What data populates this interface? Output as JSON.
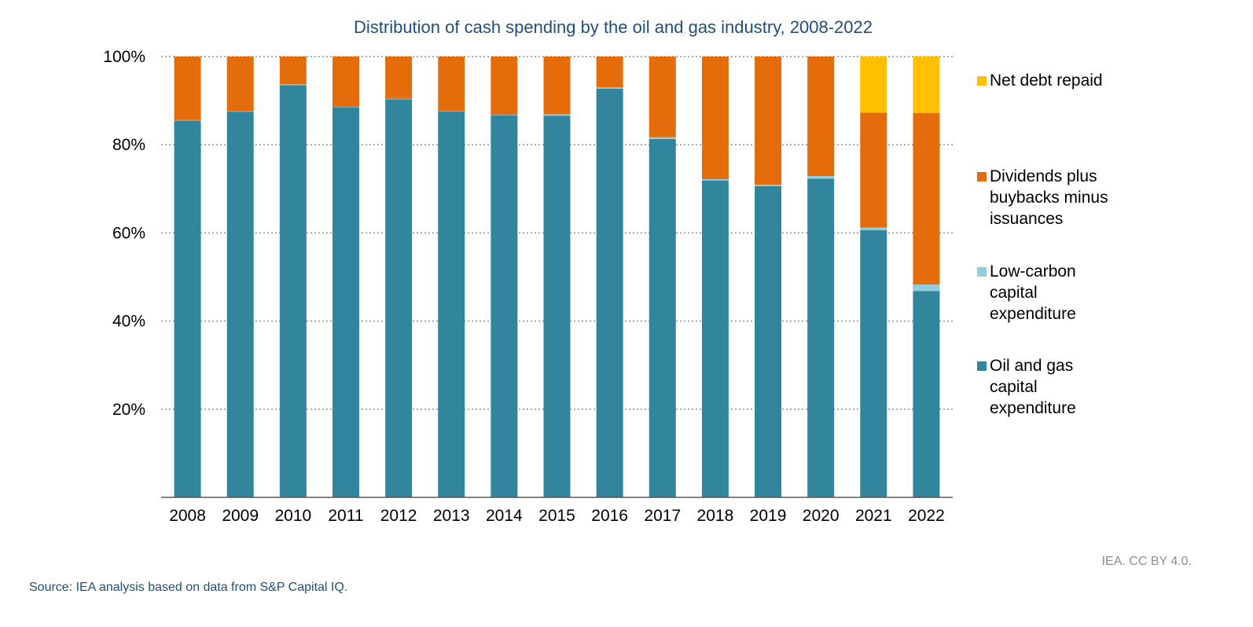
{
  "chart_data": {
    "type": "bar",
    "stacked": true,
    "title": "Distribution of cash spending by the oil and gas industry, 2008-2022",
    "categories": [
      "2008",
      "2009",
      "2010",
      "2011",
      "2012",
      "2013",
      "2014",
      "2015",
      "2016",
      "2017",
      "2018",
      "2019",
      "2020",
      "2021",
      "2022"
    ],
    "series": [
      {
        "name": "Oil and gas capital expenditure",
        "color": "#31859c",
        "values": [
          85.5,
          87.5,
          93.5,
          88.5,
          90.3,
          87.6,
          86.7,
          86.6,
          92.7,
          81.3,
          71.9,
          70.6,
          72.3,
          60.6,
          46.8
        ]
      },
      {
        "name": "Low-carbon capital expenditure",
        "color": "#93cddd",
        "values": [
          0.1,
          0.1,
          0.2,
          0.1,
          0.1,
          0.1,
          0.1,
          0.3,
          0.3,
          0.4,
          0.3,
          0.3,
          0.6,
          0.6,
          1.5
        ]
      },
      {
        "name": "Dividends plus buybacks minus issuances",
        "color": "#e46c0a",
        "values": [
          14.4,
          12.4,
          6.3,
          11.4,
          9.6,
          12.3,
          13.2,
          13.1,
          7.0,
          18.3,
          27.8,
          29.1,
          27.1,
          26.1,
          38.9
        ]
      },
      {
        "name": "Net debt repaid",
        "color": "#ffc000",
        "values": [
          0,
          0,
          0,
          0,
          0,
          0,
          0,
          0,
          0,
          0,
          0,
          0,
          0,
          12.7,
          12.8
        ]
      }
    ],
    "ylim": [
      0,
      100
    ],
    "yticks": [
      "20%",
      "40%",
      "60%",
      "80%",
      "100%"
    ],
    "ytick_values": [
      20,
      40,
      60,
      80,
      100
    ],
    "xlabel": "",
    "ylabel": "",
    "grid": true,
    "legend_position": "right"
  },
  "legend": [
    {
      "label": "Net debt repaid",
      "color": "#ffc000"
    },
    {
      "label": "Dividends plus buybacks minus issuances",
      "color": "#e46c0a"
    },
    {
      "label": "Low-carbon capital expenditure",
      "color": "#93cddd"
    },
    {
      "label": "Oil and gas capital expenditure",
      "color": "#31859c"
    }
  ],
  "credit": "IEA. CC BY 4.0.",
  "source": "Source: IEA analysis based on data from S&P Capital IQ."
}
